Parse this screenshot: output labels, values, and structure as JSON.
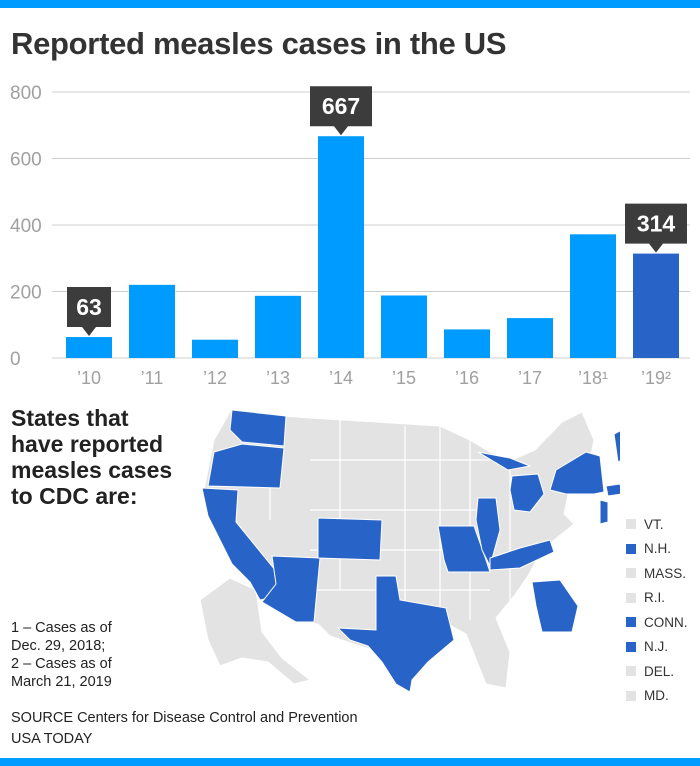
{
  "colors": {
    "accent_rule": "#009bff",
    "bar": "#009bff",
    "bar_highlight": "#2864c8",
    "callout_bg": "#3c3c3c",
    "grid": "#cfcfcf",
    "axis_text": "#a0a0a0",
    "state_reported": "#2864c8",
    "state_not_reported": "#e3e3e3"
  },
  "chart_data": {
    "type": "bar",
    "title": "Reported measles cases in the US",
    "categories": [
      "’10",
      "’11",
      "’12",
      "’13",
      "’14",
      "’15",
      "’16",
      "’17",
      "’18¹",
      "’19²"
    ],
    "values": [
      63,
      220,
      55,
      187,
      667,
      188,
      86,
      120,
      372,
      314
    ],
    "highlight_index": 9,
    "callouts": [
      {
        "index": 0,
        "label": "63"
      },
      {
        "index": 4,
        "label": "667"
      },
      {
        "index": 9,
        "label": "314"
      }
    ],
    "ylim": [
      0,
      800
    ],
    "yticks": [
      "0",
      "200",
      "400",
      "600",
      "800"
    ],
    "xlabel": "",
    "ylabel": "",
    "grid": true
  },
  "states_heading": [
    "States that",
    "have reported",
    "measles cases",
    "to CDC are:"
  ],
  "legend": [
    {
      "label": "VT.",
      "reported": false
    },
    {
      "label": "N.H.",
      "reported": true
    },
    {
      "label": "MASS.",
      "reported": false
    },
    {
      "label": "R.I.",
      "reported": false
    },
    {
      "label": "CONN.",
      "reported": true
    },
    {
      "label": "N.J.",
      "reported": true
    },
    {
      "label": "DEL.",
      "reported": false
    },
    {
      "label": "MD.",
      "reported": false
    }
  ],
  "footnotes": {
    "note1_line1": "1 – Cases as of",
    "note1_line2": "Dec. 29, 2018;",
    "note2_line1": "2 – Cases as of",
    "note2_line2": "March 21, 2019"
  },
  "source": {
    "line1": "SOURCE Centers for Disease Control and Prevention",
    "line2": "USA TODAY"
  }
}
